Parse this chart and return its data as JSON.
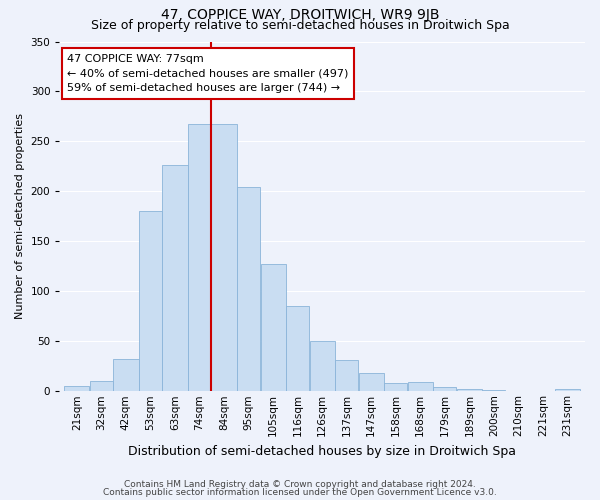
{
  "title": "47, COPPICE WAY, DROITWICH, WR9 9JB",
  "subtitle": "Size of property relative to semi-detached houses in Droitwich Spa",
  "xlabel": "Distribution of semi-detached houses by size in Droitwich Spa",
  "ylabel": "Number of semi-detached properties",
  "footnote1": "Contains HM Land Registry data © Crown copyright and database right 2024.",
  "footnote2": "Contains public sector information licensed under the Open Government Licence v3.0.",
  "annotation_line1": "47 COPPICE WAY: 77sqm",
  "annotation_line2": "← 40% of semi-detached houses are smaller (497)",
  "annotation_line3": "59% of semi-detached houses are larger (744) →",
  "categories": [
    "21sqm",
    "32sqm",
    "42sqm",
    "53sqm",
    "63sqm",
    "74sqm",
    "84sqm",
    "95sqm",
    "105sqm",
    "116sqm",
    "126sqm",
    "137sqm",
    "147sqm",
    "158sqm",
    "168sqm",
    "179sqm",
    "189sqm",
    "200sqm",
    "210sqm",
    "221sqm",
    "231sqm"
  ],
  "bar_heights": [
    5,
    10,
    32,
    180,
    226,
    267,
    267,
    204,
    127,
    85,
    50,
    31,
    18,
    8,
    9,
    4,
    2,
    1,
    0,
    0,
    2
  ],
  "bin_left_edges": [
    21,
    32,
    42,
    53,
    63,
    74,
    84,
    95,
    105,
    116,
    126,
    137,
    147,
    158,
    168,
    179,
    189,
    200,
    210,
    221,
    231
  ],
  "bin_width": 11,
  "bar_color": "#c9ddf2",
  "bar_edge_color": "#8ab4d9",
  "vline_x": 84,
  "vline_color": "#cc0000",
  "annotation_box_edge_color": "#cc0000",
  "ylim": [
    0,
    350
  ],
  "title_fontsize": 10,
  "subtitle_fontsize": 9,
  "ylabel_fontsize": 8,
  "xlabel_fontsize": 9,
  "tick_fontsize": 7.5,
  "annotation_fontsize": 8,
  "footnote_fontsize": 6.5,
  "background_color": "#eef2fb",
  "grid_color": "#ffffff"
}
